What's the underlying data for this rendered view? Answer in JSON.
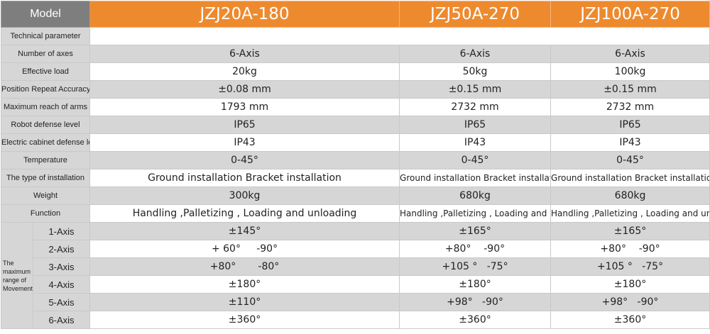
{
  "header": {
    "model_label": "Model",
    "models": [
      "JZJ20A-180",
      "JZJ50A-270",
      "JZJ100A-270"
    ]
  },
  "section_label": "Technical parameter",
  "rows": [
    {
      "label": "Number of axes",
      "values": [
        "6-Axis",
        "6-Axis",
        "6-Axis"
      ]
    },
    {
      "label": "Effective load",
      "values": [
        "20kg",
        "50kg",
        "100kg"
      ]
    },
    {
      "label": "Position Repeat  Accuracy",
      "values": [
        "±0.08 mm",
        "±0.15 mm",
        "±0.15 mm"
      ]
    },
    {
      "label": "Maximum reach of arms",
      "values": [
        "1793  mm",
        "2732 mm",
        "2732 mm"
      ]
    },
    {
      "label": "Robot defense level",
      "values": [
        "IP65",
        "IP65",
        "IP65"
      ]
    },
    {
      "label": "Electric cabinet defense level",
      "values": [
        "IP43",
        "IP43",
        "IP43"
      ]
    },
    {
      "label": "Temperature",
      "values": [
        "0-45°",
        "0-45°",
        "0-45°"
      ]
    },
    {
      "label": "The type of installation",
      "values": [
        "Ground installation Bracket installation",
        "Ground installation Bracket installation",
        "Ground installation Bracket installation"
      ]
    },
    {
      "label": "Weight",
      "values": [
        "300kg",
        "680kg",
        "680kg"
      ]
    },
    {
      "label": "Function",
      "values": [
        "Handling ,Palletizing , Loading and unloading",
        "Handling ,Palletizing , Loading and unloading",
        "Handling ,Palletizing , Loading and unloading"
      ]
    }
  ],
  "movement": {
    "group_label": "The maximum range of Movement",
    "axes": [
      {
        "axis": "1-Axis",
        "values": [
          "±145°",
          "±165°",
          "±165°"
        ]
      },
      {
        "axis": "2-Axis",
        "values": [
          "+ 60°     -90°",
          "+80°    -90°",
          "+80°    -90°"
        ]
      },
      {
        "axis": "3-Axis",
        "values": [
          "+80°       -80°",
          "+105 °   -75°",
          "+105 °   -75°"
        ]
      },
      {
        "axis": "4-Axis",
        "values": [
          "±180°",
          "±180°",
          "±180°"
        ]
      },
      {
        "axis": "5-Axis",
        "values": [
          "±110°",
          "+98°   -90°",
          "+98°   -90°"
        ]
      },
      {
        "axis": "6-Axis",
        "values": [
          "±360°",
          "±360°",
          "±360°"
        ]
      }
    ]
  }
}
